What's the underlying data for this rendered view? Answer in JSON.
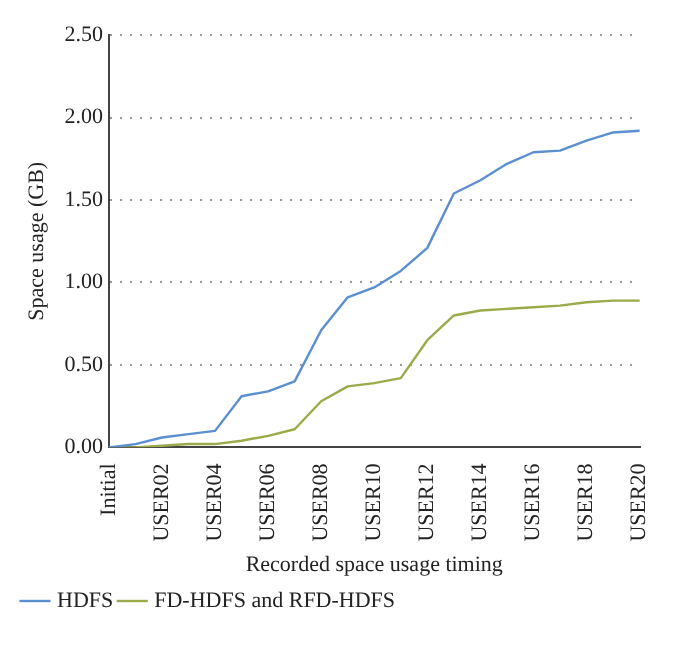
{
  "chart_data": {
    "type": "line",
    "xlabel": "Recorded space usage timing",
    "ylabel": "Space usage (GB)",
    "categories": [
      "Initial",
      null,
      "USER02",
      null,
      "USER04",
      null,
      "USER06",
      null,
      "USER08",
      null,
      "USER10",
      null,
      "USER12",
      null,
      "USER14",
      null,
      "USER16",
      null,
      "USER18",
      null,
      "USER20"
    ],
    "series": [
      {
        "name": "HDFS",
        "color": "#5b8fd0",
        "values": [
          0,
          0.02,
          0.06,
          0.08,
          0.1,
          0.31,
          0.34,
          0.4,
          0.71,
          0.91,
          0.97,
          1.07,
          1.21,
          1.54,
          1.62,
          1.72,
          1.79,
          1.8,
          1.86,
          1.91,
          1.92
        ]
      },
      {
        "name": "FD-HDFS and RFD-HDFS",
        "color": "#9aab4a",
        "values": [
          0,
          0,
          0.01,
          0.02,
          0.02,
          0.04,
          0.07,
          0.11,
          0.28,
          0.37,
          0.39,
          0.42,
          0.65,
          0.8,
          0.83,
          0.84,
          0.85,
          0.86,
          0.88,
          0.89,
          0.89
        ]
      }
    ],
    "ylim": [
      0,
      2.5
    ],
    "yticks": [
      {
        "value": 0,
        "label": "0.00"
      },
      {
        "value": 0.5,
        "label": "0.50"
      },
      {
        "value": 1,
        "label": "1.00"
      },
      {
        "value": 1.5,
        "label": "1.50"
      },
      {
        "value": 2,
        "label": "2.00"
      },
      {
        "value": 2.5,
        "label": "2.50"
      }
    ],
    "grid": "y",
    "legend": "bottom",
    "marker": "none",
    "line_style": "solid"
  }
}
